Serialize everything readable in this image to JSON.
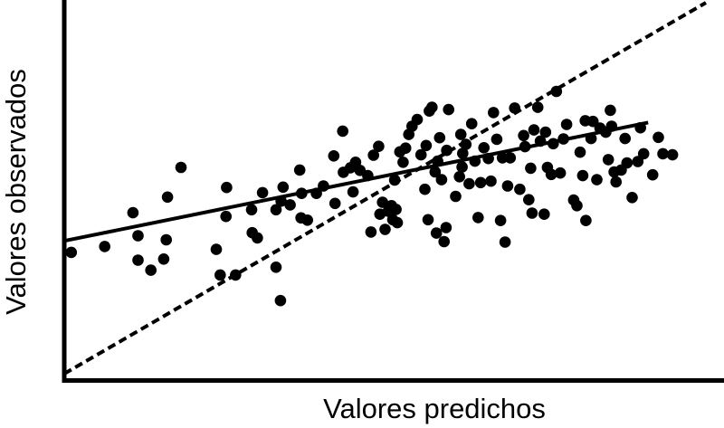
{
  "chart_data": {
    "type": "scatter",
    "title": "",
    "xlabel": "Valores predichos",
    "ylabel": "Valores observados",
    "xlim": [
      0,
      100
    ],
    "ylim": [
      0,
      100
    ],
    "grid": false,
    "ticks": false,
    "colors": {
      "points": "#000000",
      "axes": "#000000",
      "fit_line": "#000000",
      "identity_line": "#000000"
    },
    "series": [
      {
        "values": [
          [
            1.1,
            32.7
          ],
          [
            6.3,
            34.3
          ],
          [
            10.7,
            43.4
          ],
          [
            11.5,
            37.2
          ],
          [
            11.5,
            30.6
          ],
          [
            13.5,
            27.9
          ],
          [
            15.5,
            30.9
          ],
          [
            15.9,
            36.1
          ],
          [
            16.1,
            47.6
          ],
          [
            18.2,
            55.6
          ],
          [
            23.7,
            33.5
          ],
          [
            24.3,
            26.6
          ],
          [
            25.2,
            42.4
          ],
          [
            25.3,
            50.2
          ],
          [
            26.7,
            26.6
          ],
          [
            29.2,
            44.2
          ],
          [
            29.3,
            38.0
          ],
          [
            30.1,
            36.6
          ],
          [
            30.9,
            48.8
          ],
          [
            33.0,
            44.2
          ],
          [
            33.0,
            28.7
          ],
          [
            33.7,
            19.7
          ],
          [
            33.8,
            46.5
          ],
          [
            34.1,
            50.3
          ],
          [
            35.2,
            45.5
          ],
          [
            36.9,
            42.0
          ],
          [
            36.7,
            54.9
          ],
          [
            37.0,
            48.6
          ],
          [
            37.9,
            41.4
          ],
          [
            39.3,
            48.6
          ],
          [
            40.4,
            50.6
          ],
          [
            42.0,
            58.7
          ],
          [
            42.2,
            45.9
          ],
          [
            43.4,
            65.4
          ],
          [
            43.5,
            54.3
          ],
          [
            44.6,
            55.5
          ],
          [
            45.0,
            49.0
          ],
          [
            45.4,
            57.0
          ],
          [
            46.1,
            54.8
          ],
          [
            47.3,
            53.4
          ],
          [
            47.8,
            38.2
          ],
          [
            48.2,
            58.9
          ],
          [
            49.0,
            61.3
          ],
          [
            49.2,
            43.0
          ],
          [
            49.6,
            46.2
          ],
          [
            50.0,
            38.9
          ],
          [
            50.5,
            43.8
          ],
          [
            51.0,
            45.3
          ],
          [
            51.2,
            41.5
          ],
          [
            51.5,
            52.2
          ],
          [
            51.7,
            44.3
          ],
          [
            51.9,
            40.7
          ],
          [
            52.3,
            59.8
          ],
          [
            52.8,
            57.0
          ],
          [
            53.2,
            60.8
          ],
          [
            53.7,
            64.5
          ],
          [
            54.2,
            66.7
          ],
          [
            55.0,
            68.5
          ],
          [
            55.6,
            59.0
          ],
          [
            56.2,
            49.7
          ],
          [
            56.4,
            61.5
          ],
          [
            56.7,
            41.5
          ],
          [
            56.9,
            70.8
          ],
          [
            57.3,
            71.8
          ],
          [
            57.8,
            54.4
          ],
          [
            58.0,
            37.9
          ],
          [
            58.2,
            57.3
          ],
          [
            58.5,
            63.6
          ],
          [
            58.8,
            52.3
          ],
          [
            59.2,
            35.6
          ],
          [
            59.5,
            39.4
          ],
          [
            59.6,
            60.2
          ],
          [
            59.9,
            71.2
          ],
          [
            61.0,
            47.8
          ],
          [
            61.6,
            53.1
          ],
          [
            61.8,
            64.5
          ],
          [
            62.0,
            55.7
          ],
          [
            62.1,
            59.4
          ],
          [
            62.6,
            61.8
          ],
          [
            63.1,
            51.2
          ],
          [
            63.5,
            67.4
          ],
          [
            64.0,
            57.3
          ],
          [
            64.5,
            42.1
          ],
          [
            64.9,
            51.5
          ],
          [
            65.4,
            60.9
          ],
          [
            66.1,
            58.0
          ],
          [
            66.5,
            51.9
          ],
          [
            66.9,
            70.4
          ],
          [
            67.4,
            63.2
          ],
          [
            68.0,
            41.3
          ],
          [
            68.3,
            58.2
          ],
          [
            68.7,
            35.5
          ],
          [
            69.1,
            50.6
          ],
          [
            69.5,
            58.2
          ],
          [
            70.2,
            71.6
          ],
          [
            71.0,
            49.7
          ],
          [
            71.6,
            64.2
          ],
          [
            71.8,
            61.2
          ],
          [
            72.4,
            46.9
          ],
          [
            72.7,
            55.4
          ],
          [
            72.9,
            43.3
          ],
          [
            73.2,
            65.7
          ],
          [
            73.8,
            71.8
          ],
          [
            74.2,
            62.7
          ],
          [
            74.8,
            43.0
          ],
          [
            75.0,
            65.1
          ],
          [
            75.3,
            55.6
          ],
          [
            75.9,
            53.7
          ],
          [
            76.2,
            62.0
          ],
          [
            76.7,
            76.1
          ],
          [
            77.3,
            54.1
          ],
          [
            77.8,
            63.3
          ],
          [
            78.3,
            67.2
          ],
          [
            79.4,
            46.8
          ],
          [
            79.9,
            45.3
          ],
          [
            80.4,
            59.7
          ],
          [
            80.8,
            53.4
          ],
          [
            81.2,
            68.2
          ],
          [
            81.3,
            41.3
          ],
          [
            82.1,
            63.4
          ],
          [
            82.4,
            68.0
          ],
          [
            83.0,
            52.3
          ],
          [
            83.5,
            66.2
          ],
          [
            84.4,
            65.1
          ],
          [
            84.8,
            57.7
          ],
          [
            85.1,
            71.0
          ],
          [
            85.3,
            66.7
          ],
          [
            85.7,
            54.4
          ],
          [
            86.0,
            51.7
          ],
          [
            86.8,
            54.9
          ],
          [
            87.4,
            63.4
          ],
          [
            87.7,
            56.8
          ],
          [
            88.5,
            47.5
          ],
          [
            89.4,
            57.2
          ],
          [
            89.8,
            66.3
          ],
          [
            90.3,
            59.3
          ],
          [
            91.7,
            53.6
          ],
          [
            92.6,
            63.7
          ],
          [
            93.3,
            59.3
          ],
          [
            94.8,
            59.0
          ]
        ]
      }
    ],
    "fit_line": {
      "style": "solid",
      "x": [
        0,
        91
      ],
      "y": [
        35.8,
        67.7
      ]
    },
    "identity_line": {
      "style": "dashed",
      "x": [
        0,
        100
      ],
      "y": [
        0,
        100
      ]
    }
  }
}
